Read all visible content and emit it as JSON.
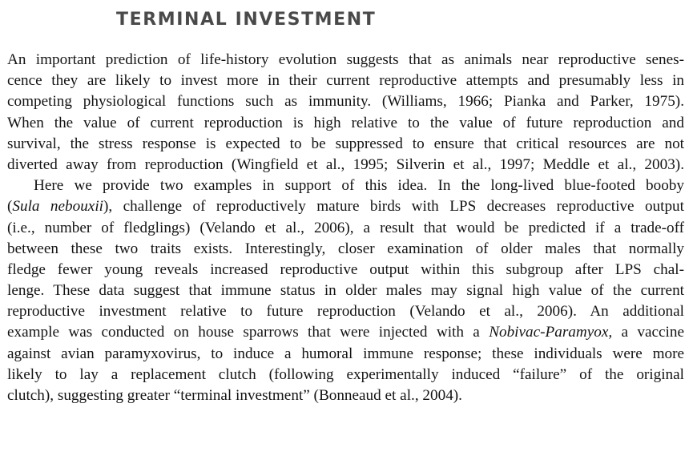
{
  "section": {
    "heading": "TERMINAL INVESTMENT"
  },
  "paragraphs": [
    {
      "lines": [
        "An important prediction of life-history evolution suggests that as animals near reproductive senes-",
        "cence they are likely to invest more in their current reproductive attempts and presumably less in",
        "competing physiological functions such as immunity. (Williams, 1966; Pianka and Parker, 1975).",
        "When the value of current reproduction is high relative to the value of future reproduction and",
        "survival, the stress response is expected to be suppressed to ensure that critical resources are not",
        "diverted away from reproduction (Wingfield et al., 1995; Silverin et al., 1997; Meddle et al., 2003)."
      ]
    },
    {
      "lines": [
        "Here we provide two examples in support of this idea. In the long-lived blue-footed booby",
        {
          "pre": "(",
          "italic": "Sula nebouxii",
          "post": "), challenge of reproductively mature birds with LPS decreases reproductive output"
        },
        "(i.e., number of fledglings) (Velando et al., 2006), a result that would be predicted if a trade-off",
        "between these two traits exists. Interestingly, closer examination of older males that normally",
        "fledge fewer young reveals increased reproductive output within this subgroup after LPS chal-",
        "lenge. These data suggest that immune status in older males may signal high value of the current",
        "reproductive investment relative to future reproduction (Velando et al., 2006). An additional",
        {
          "pre": "example was conducted on house sparrows that were injected with a ",
          "italic": "Nobivac-Paramyox,",
          "post": " a vaccine"
        },
        "against avian paramyxovirus, to induce a humoral immune response; these individuals were more",
        "likely to lay a replacement clutch (following experimentally induced “failure” of the original",
        "clutch), suggesting greater “terminal investment” (Bonneaud et al., 2004)."
      ]
    }
  ]
}
